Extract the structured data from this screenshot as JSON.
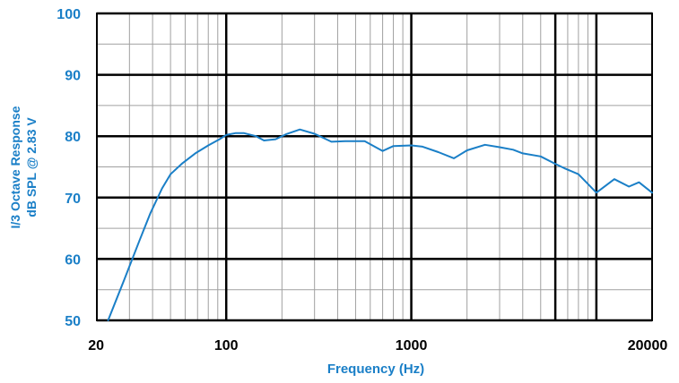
{
  "colors": {
    "accent": "#1a7fc7",
    "line": "#1a7fc7",
    "major_grid": "#000000",
    "minor_grid": "#a0a0a0",
    "frame": "#000000"
  },
  "chart_data": {
    "type": "line",
    "title": "",
    "xlabel": "Frequency (Hz)",
    "ylabel": [
      "I/3 Octave Response",
      "dB SPL @ 2.83 V"
    ],
    "x_scale": "log",
    "xlim": [
      20,
      20000
    ],
    "ylim": [
      50,
      100
    ],
    "grid": true,
    "legend": "none",
    "x_tick_labels": [
      {
        "value": 20,
        "label": "20"
      },
      {
        "value": 100,
        "label": "100"
      },
      {
        "value": 1000,
        "label": "1000"
      },
      {
        "value": 20000,
        "label": "20000"
      }
    ],
    "y_tick_labels": [
      {
        "value": 50,
        "label": "50"
      },
      {
        "value": 60,
        "label": "60"
      },
      {
        "value": 70,
        "label": "70"
      },
      {
        "value": 80,
        "label": "80"
      },
      {
        "value": 90,
        "label": "90"
      },
      {
        "value": 100,
        "label": "100"
      }
    ],
    "series": [
      {
        "x": [
          23,
          28,
          34,
          39,
          45,
          50,
          58,
          68,
          80,
          92,
          100,
          112,
          125,
          145,
          160,
          185,
          210,
          250,
          300,
          370,
          440,
          560,
          700,
          800,
          1000,
          1150,
          1400,
          1700,
          2000,
          2500,
          3000,
          3550,
          4000,
          5000,
          6000,
          6700,
          8000,
          10000,
          12500,
          15000,
          17000,
          20000
        ],
        "y": [
          50.0,
          56.5,
          63.0,
          67.5,
          71.5,
          73.8,
          75.6,
          77.2,
          78.5,
          79.5,
          80.2,
          80.5,
          80.5,
          80.0,
          79.3,
          79.5,
          80.3,
          81.1,
          80.4,
          79.1,
          79.2,
          79.2,
          77.6,
          78.4,
          78.5,
          78.3,
          77.4,
          76.4,
          77.7,
          78.6,
          78.2,
          77.8,
          77.2,
          76.7,
          75.5,
          74.8,
          73.8,
          70.8,
          73.0,
          71.8,
          72.5,
          70.8
        ]
      }
    ]
  }
}
